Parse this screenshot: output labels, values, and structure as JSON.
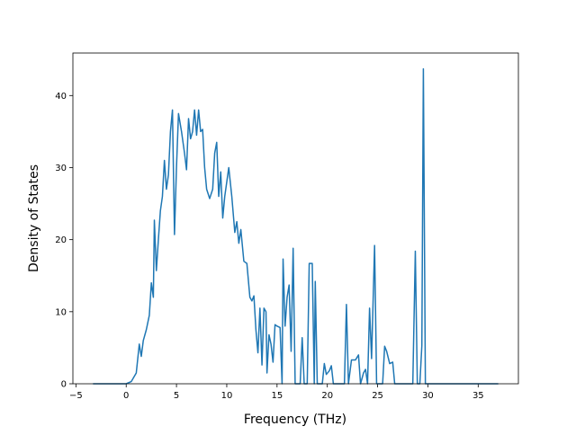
{
  "chart_data": {
    "type": "line",
    "xlabel": "Frequency (THz)",
    "ylabel": "Density of States",
    "x": [
      -3.3,
      0,
      0.5,
      1.0,
      1.3,
      1.5,
      1.7,
      2.0,
      2.3,
      2.5,
      2.7,
      2.8,
      3.0,
      3.2,
      3.4,
      3.6,
      3.8,
      4.0,
      4.2,
      4.4,
      4.6,
      4.8,
      5.0,
      5.2,
      5.5,
      5.8,
      6.0,
      6.2,
      6.4,
      6.6,
      6.8,
      7.0,
      7.2,
      7.4,
      7.6,
      7.8,
      8.0,
      8.3,
      8.6,
      8.8,
      9.0,
      9.2,
      9.4,
      9.6,
      9.8,
      10.0,
      10.2,
      10.5,
      10.8,
      11.0,
      11.2,
      11.4,
      11.7,
      12.0,
      12.3,
      12.5,
      12.7,
      12.9,
      13.1,
      13.3,
      13.5,
      13.7,
      13.9,
      14.0,
      14.2,
      14.4,
      14.6,
      14.8,
      15.0,
      15.3,
      15.5,
      15.6,
      15.8,
      16.0,
      16.2,
      16.4,
      16.6,
      16.8,
      17.3,
      17.5,
      17.7,
      18.0,
      18.2,
      18.5,
      18.7,
      18.8,
      19.0,
      19.5,
      19.7,
      19.9,
      20.2,
      20.4,
      20.6,
      21.7,
      21.9,
      22.1,
      22.4,
      22.8,
      23.1,
      23.3,
      23.6,
      23.8,
      24.0,
      24.2,
      24.4,
      24.7,
      24.9,
      25.5,
      25.7,
      25.9,
      26.2,
      26.5,
      26.7,
      28.5,
      28.75,
      28.95,
      29.2,
      29.4,
      29.55,
      29.75,
      37
    ],
    "series": [
      {
        "color": "#1f77b4",
        "values": [
          0,
          0,
          0.3,
          1.5,
          5.5,
          3.8,
          6,
          7.5,
          9.5,
          14,
          12,
          22.7,
          15.7,
          20,
          24,
          26,
          31,
          27,
          29,
          35,
          38,
          20.7,
          30,
          37.5,
          35,
          32,
          29.7,
          36.8,
          34,
          35,
          38,
          34.5,
          38,
          35,
          35.3,
          30,
          27,
          25.7,
          27,
          32,
          33.5,
          26,
          29.4,
          23,
          26,
          28,
          30,
          26,
          21,
          22.5,
          19.5,
          21.4,
          17,
          16.7,
          12,
          11.5,
          12.2,
          7.5,
          4.3,
          10.5,
          2.6,
          10.5,
          10,
          1.5,
          6.8,
          5.5,
          3,
          8.2,
          8,
          7.8,
          0,
          17.3,
          8,
          12,
          13.7,
          4.5,
          18.8,
          0,
          0,
          6.4,
          0,
          0,
          16.7,
          16.7,
          0,
          14.2,
          0,
          0,
          2.8,
          1.3,
          1.8,
          2.5,
          0,
          0,
          11,
          0,
          3.3,
          3.3,
          4,
          0,
          1.5,
          2,
          0,
          10.5,
          3.5,
          19.2,
          0,
          0,
          5.2,
          4.5,
          2.8,
          3,
          0,
          0,
          18.4,
          0,
          0,
          5.3,
          43.7,
          0,
          0
        ]
      }
    ],
    "xlim": [
      -5.3,
      39
    ],
    "ylim": [
      0,
      45.9
    ],
    "xticks": [
      {
        "value": -5,
        "label": "−5"
      },
      0,
      5,
      10,
      15,
      20,
      25,
      30,
      35
    ],
    "yticks": [
      0,
      10,
      20,
      30,
      40
    ]
  }
}
